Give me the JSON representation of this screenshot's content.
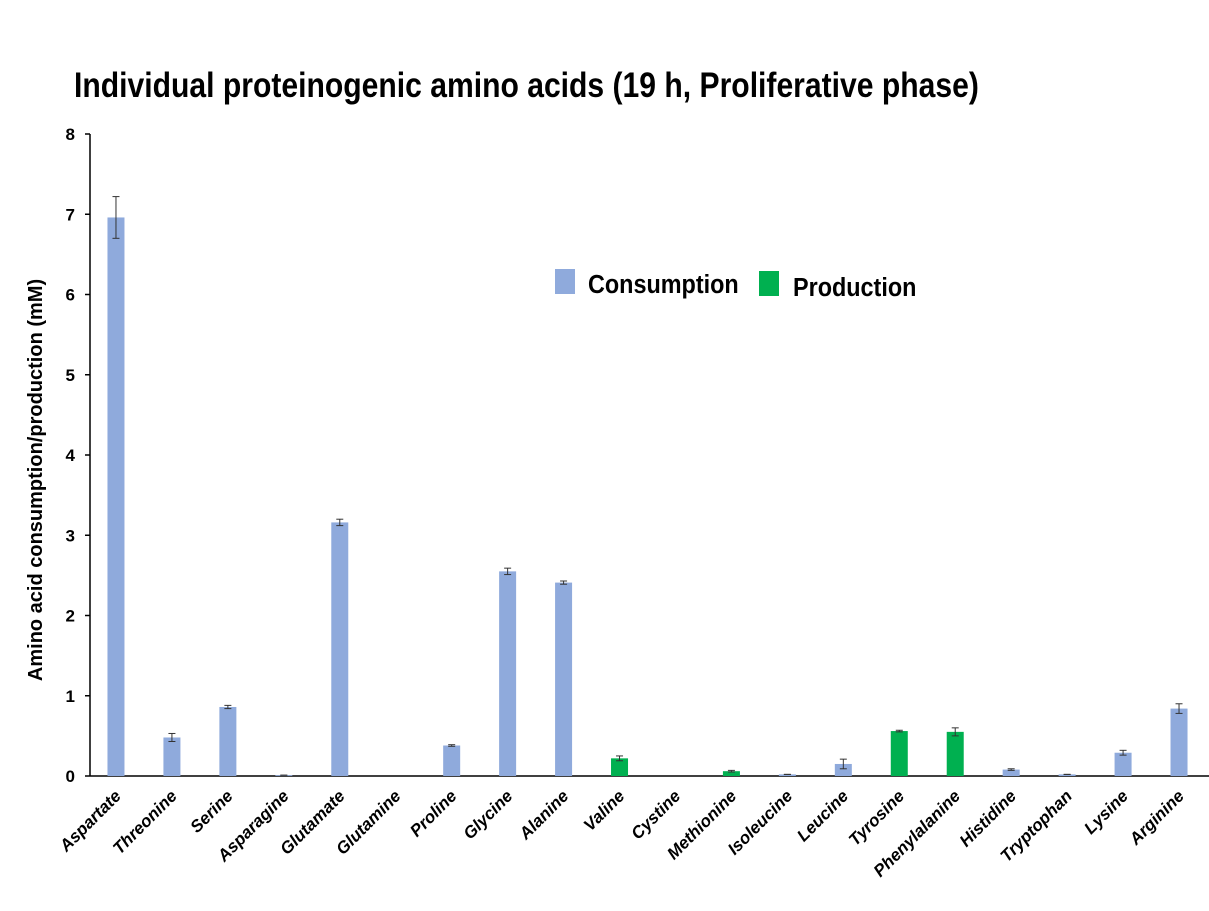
{
  "chart_data": {
    "type": "bar",
    "title": "Individual proteinogenic amino acids (19 h, Proliferative phase)",
    "xlabel": "",
    "ylabel": "Amino acid consumption/production (mM)",
    "ylim": [
      0,
      8
    ],
    "yticks": [
      "0",
      "1",
      "2",
      "3",
      "4",
      "5",
      "6",
      "7",
      "8"
    ],
    "grid": false,
    "legend_position": "top-center",
    "categories": [
      "Aspartate",
      "Threonine",
      "Serine",
      "Asparagine",
      "Glutamate",
      "Glutamine",
      "Proline",
      "Glycine",
      "Alanine",
      "Valine",
      "Cystine",
      "Methionine",
      "Isoleucine",
      "Leucine",
      "Tyrosine",
      "Phenylalanine",
      "Histidine",
      "Tryptophan",
      "Lysine",
      "Arginine"
    ],
    "series": [
      {
        "name": "Consumption",
        "color": "#8faadc",
        "values": [
          6.96,
          0.48,
          0.86,
          0.01,
          3.16,
          0,
          0.38,
          2.55,
          2.41,
          null,
          0,
          null,
          0.02,
          0.15,
          null,
          null,
          0.08,
          0.02,
          0.29,
          0.84
        ],
        "errors": [
          0.26,
          0.05,
          0.02,
          0,
          0.04,
          0,
          0.01,
          0.04,
          0.02,
          null,
          0,
          null,
          0,
          0.06,
          null,
          null,
          0.01,
          0,
          0.03,
          0.06
        ]
      },
      {
        "name": "Production",
        "color": "#00b050",
        "values": [
          null,
          null,
          null,
          null,
          null,
          null,
          null,
          null,
          null,
          0.22,
          null,
          0.06,
          null,
          null,
          0.56,
          0.55,
          null,
          null,
          null,
          null
        ],
        "errors": [
          null,
          null,
          null,
          null,
          null,
          null,
          null,
          null,
          null,
          0.03,
          null,
          0.01,
          null,
          null,
          0.01,
          0.05,
          null,
          null,
          null,
          null
        ]
      }
    ]
  }
}
